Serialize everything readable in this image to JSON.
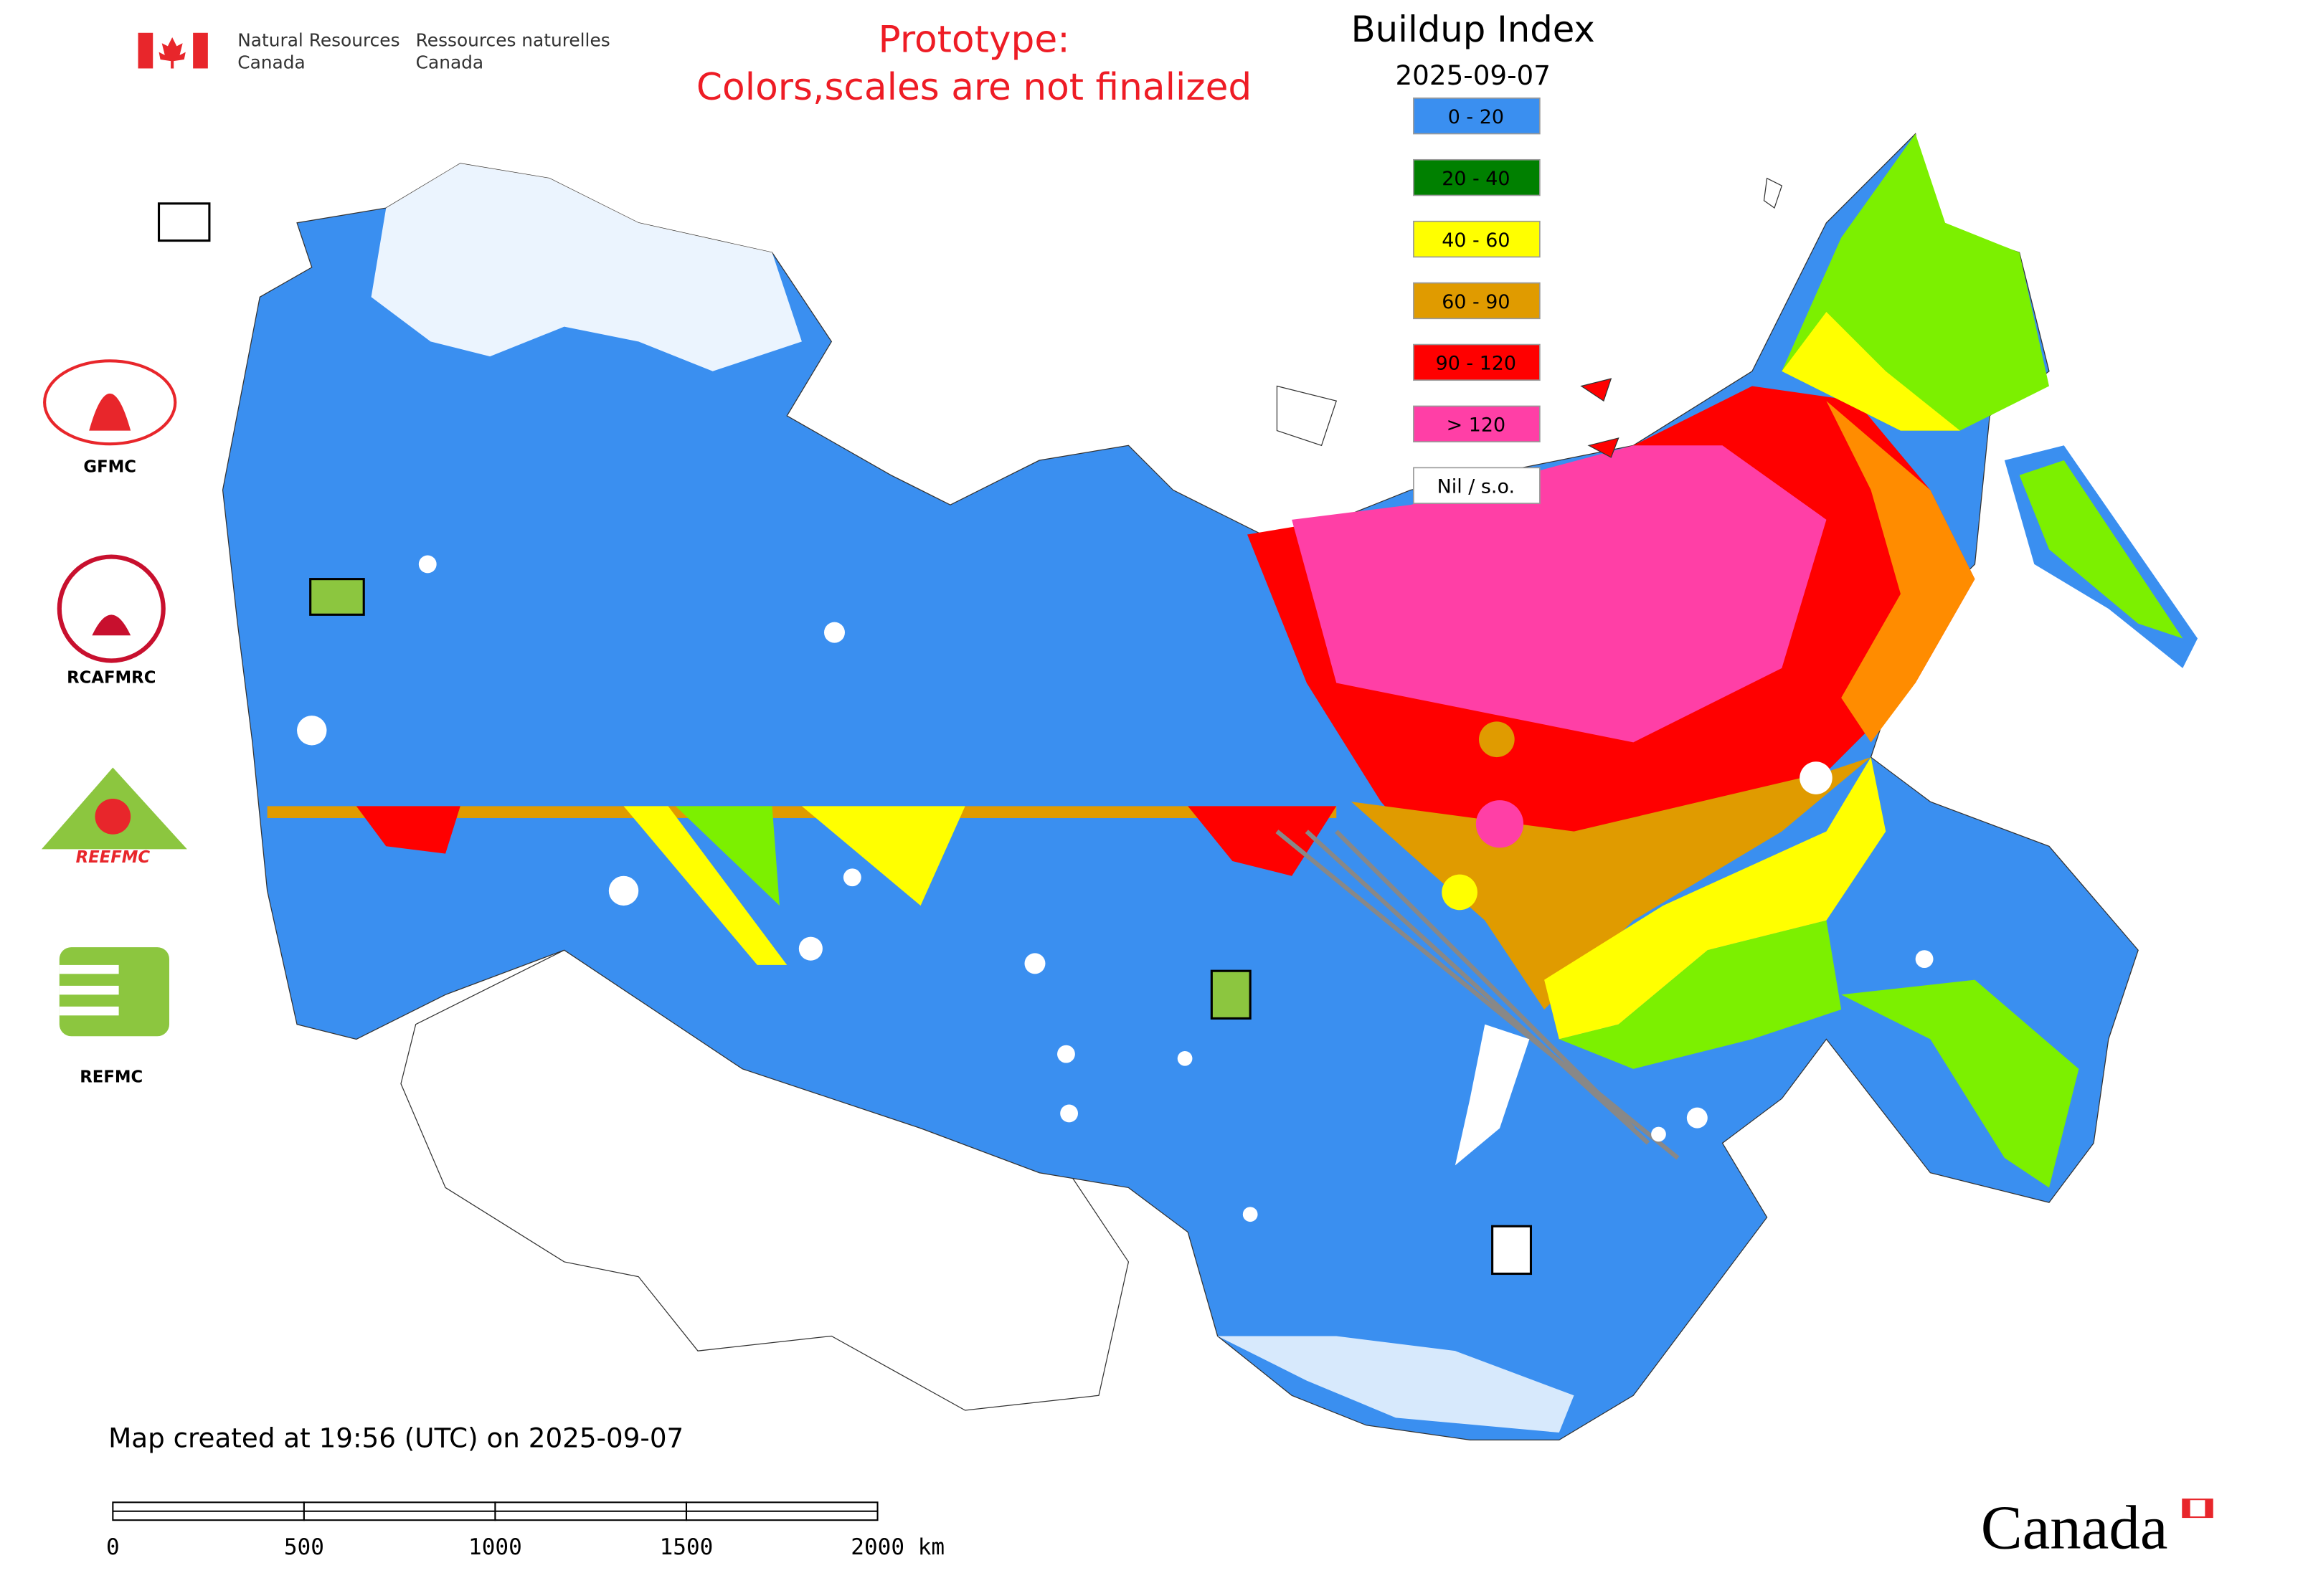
{
  "header": {
    "agency_en": [
      "Natural Resources",
      "Canada"
    ],
    "agency_fr": [
      "Ressources naturelles",
      "Canada"
    ]
  },
  "notice": [
    "Prototype:",
    "Colors,scales are not finalized"
  ],
  "title": "Buildup Index",
  "date": "2025-09-07",
  "legend": [
    {
      "label": "0 - 20",
      "color": "#3a8ff0"
    },
    {
      "label": "20 - 40",
      "color": "#008000"
    },
    {
      "label": "40 - 60",
      "color": "#ffff00"
    },
    {
      "label": "60 - 90",
      "color": "#e09b00"
    },
    {
      "label": "90 - 120",
      "color": "#ff0000"
    },
    {
      "label": "> 120",
      "color": "#ff3fa6"
    },
    {
      "label": "Nil / s.o.",
      "color": "#ffffff"
    }
  ],
  "logos": [
    "GFMC",
    "RCAFMRC",
    "REEFMC",
    "REFMC"
  ],
  "footer": "Map created at 19:56 (UTC) on 2025-09-07",
  "scale_bar": [
    "0",
    "500",
    "1000",
    "1500",
    "2000 km"
  ],
  "wordmark": "Canada"
}
